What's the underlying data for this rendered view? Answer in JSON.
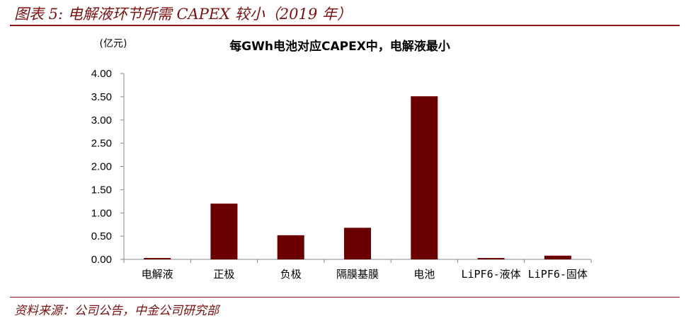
{
  "figure_title": "图表 5:  电解液环节所需 CAPEX 较小（2019 年）",
  "source_note": "资料来源：公司公告，中金公司研究部",
  "chart_data": {
    "type": "bar",
    "title": "每GWh电池对应CAPEX中，电解液最小",
    "unit_label": "(亿元)",
    "categories": [
      "电解液",
      "正极",
      "负极",
      "隔膜基膜",
      "电池",
      "LiPF6-液体",
      "LiPF6-固体"
    ],
    "values": [
      0.03,
      1.2,
      0.52,
      0.68,
      3.51,
      0.03,
      0.08
    ],
    "ylim": [
      0,
      4.0
    ],
    "yticks": [
      "0.00",
      "0.50",
      "1.00",
      "1.50",
      "2.00",
      "2.50",
      "3.00",
      "3.50",
      "4.00"
    ],
    "bar_color": "#6b0000",
    "grid": false,
    "legend": "none"
  }
}
